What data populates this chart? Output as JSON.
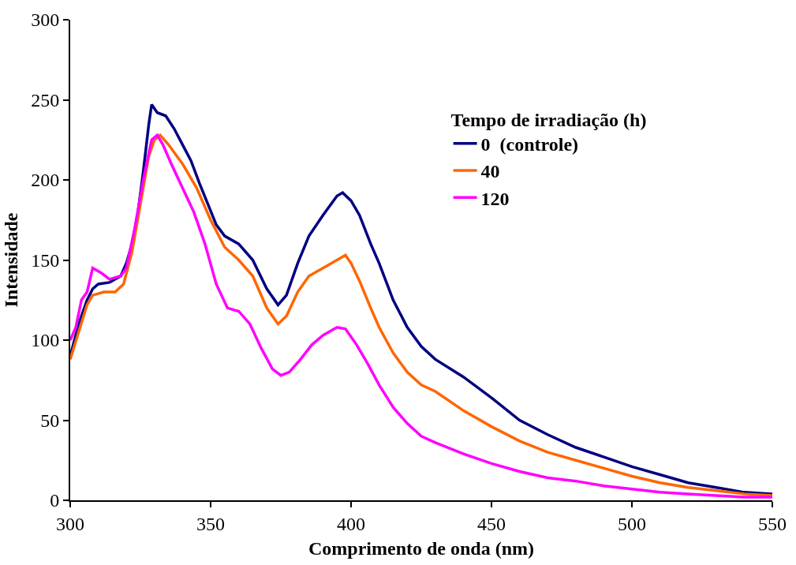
{
  "chart_data": {
    "type": "line",
    "xlabel": "Comprimento de onda (nm)",
    "ylabel": "Intensidade",
    "legend_title": "Tempo de irradiação (h)",
    "legend": "top right",
    "grid": false,
    "marker": "none",
    "line_style": "solid",
    "xlim": [
      300,
      550
    ],
    "xticks": [
      300,
      350,
      400,
      450,
      500,
      550
    ],
    "ylim": [
      0,
      300
    ],
    "yticks": [
      0,
      50,
      100,
      150,
      200,
      250,
      300
    ],
    "series": [
      {
        "name": "0  (controle)",
        "color": "#000080",
        "x": [
          300,
          303,
          306,
          308,
          310,
          314,
          318,
          320,
          322,
          324,
          326,
          328,
          329,
          331,
          334,
          337,
          340,
          343,
          346,
          349,
          352,
          355,
          360,
          365,
          370,
          374,
          377,
          381,
          385,
          390,
          395,
          397,
          400,
          403,
          407,
          410,
          415,
          420,
          425,
          430,
          440,
          450,
          460,
          470,
          480,
          490,
          500,
          510,
          520,
          530,
          540,
          550
        ],
        "values": [
          90,
          110,
          125,
          132,
          135,
          136,
          140,
          148,
          160,
          178,
          205,
          235,
          247,
          242,
          240,
          232,
          222,
          212,
          198,
          185,
          172,
          165,
          160,
          150,
          132,
          122,
          128,
          148,
          165,
          178,
          190,
          192,
          187,
          178,
          160,
          148,
          125,
          108,
          96,
          88,
          77,
          64,
          50,
          41,
          33,
          27,
          21,
          16,
          11,
          8,
          5,
          4
        ]
      },
      {
        "name": "40",
        "color": "#ff6600",
        "x": [
          300,
          303,
          306,
          308,
          312,
          316,
          319,
          322,
          325,
          328,
          330,
          332,
          335,
          340,
          345,
          350,
          355,
          360,
          365,
          370,
          374,
          377,
          381,
          385,
          390,
          395,
          398,
          400,
          403,
          407,
          410,
          415,
          420,
          425,
          430,
          440,
          450,
          460,
          470,
          480,
          490,
          500,
          510,
          520,
          530,
          540,
          550
        ],
        "values": [
          88,
          105,
          122,
          128,
          130,
          130,
          135,
          155,
          185,
          215,
          225,
          228,
          222,
          210,
          195,
          175,
          158,
          150,
          140,
          120,
          110,
          115,
          130,
          140,
          145,
          150,
          153,
          148,
          137,
          120,
          108,
          92,
          80,
          72,
          68,
          56,
          46,
          37,
          30,
          25,
          20,
          15,
          11,
          8,
          6,
          4,
          3
        ]
      },
      {
        "name": "120",
        "color": "#ff00ff",
        "x": [
          300,
          302,
          304,
          306,
          308,
          311,
          314,
          318,
          320,
          323,
          326,
          329,
          331,
          333,
          336,
          340,
          344,
          348,
          352,
          356,
          360,
          364,
          368,
          372,
          375,
          378,
          382,
          386,
          390,
          395,
          398,
          402,
          406,
          410,
          415,
          420,
          425,
          430,
          440,
          450,
          460,
          470,
          480,
          490,
          500,
          510,
          520,
          530,
          540,
          550
        ],
        "values": [
          100,
          108,
          125,
          130,
          145,
          142,
          138,
          140,
          145,
          170,
          200,
          225,
          228,
          222,
          210,
          195,
          180,
          160,
          135,
          120,
          118,
          110,
          95,
          82,
          78,
          80,
          88,
          97,
          103,
          108,
          107,
          97,
          85,
          72,
          58,
          48,
          40,
          36,
          29,
          23,
          18,
          14,
          12,
          9,
          7,
          5,
          4,
          3,
          2,
          2
        ]
      }
    ]
  }
}
